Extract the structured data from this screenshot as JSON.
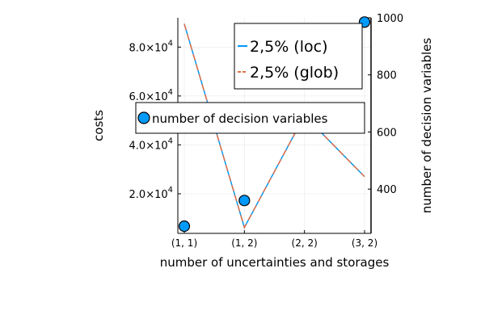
{
  "chart_data": {
    "type": "line",
    "xlabel": "number of uncertainties and storages",
    "ylabel": "costs",
    "y2label": "number of decision variables",
    "categories": [
      "(1, 1)",
      "(1, 2)",
      "(2, 2)",
      "(3, 2)"
    ],
    "ylim": [
      3800,
      92000
    ],
    "y2lim": [
      245,
      1000
    ],
    "yticks": [
      {
        "value": 20000,
        "mant": "2.0×10",
        "exp": "4"
      },
      {
        "value": 40000,
        "mant": "4.0×10",
        "exp": "4"
      },
      {
        "value": 60000,
        "mant": "6.0×10",
        "exp": "4"
      },
      {
        "value": 80000,
        "mant": "8.0×10",
        "exp": "4"
      }
    ],
    "y2ticks": [
      400,
      600,
      800,
      1000
    ],
    "grid": true,
    "series": [
      {
        "name": "2,5% (loc)",
        "axis": "left",
        "color": "#009AFA",
        "dash": false,
        "x": [
          0,
          1,
          2,
          3
        ],
        "y": [
          89500,
          6200,
          52000,
          27000
        ]
      },
      {
        "name": "2,5% (glob)",
        "axis": "left",
        "color": "#E26F46",
        "dash": true,
        "x": [
          0,
          1,
          2,
          3
        ],
        "y": [
          89500,
          6200,
          52000,
          27000
        ]
      },
      {
        "name": "number of decision variables",
        "axis": "right",
        "type": "scatter",
        "color": "#009AFA",
        "x": [
          0,
          1,
          3
        ],
        "y": [
          270,
          360,
          985
        ]
      }
    ],
    "legend": {
      "lines": "top-right",
      "scatter": "center"
    }
  }
}
